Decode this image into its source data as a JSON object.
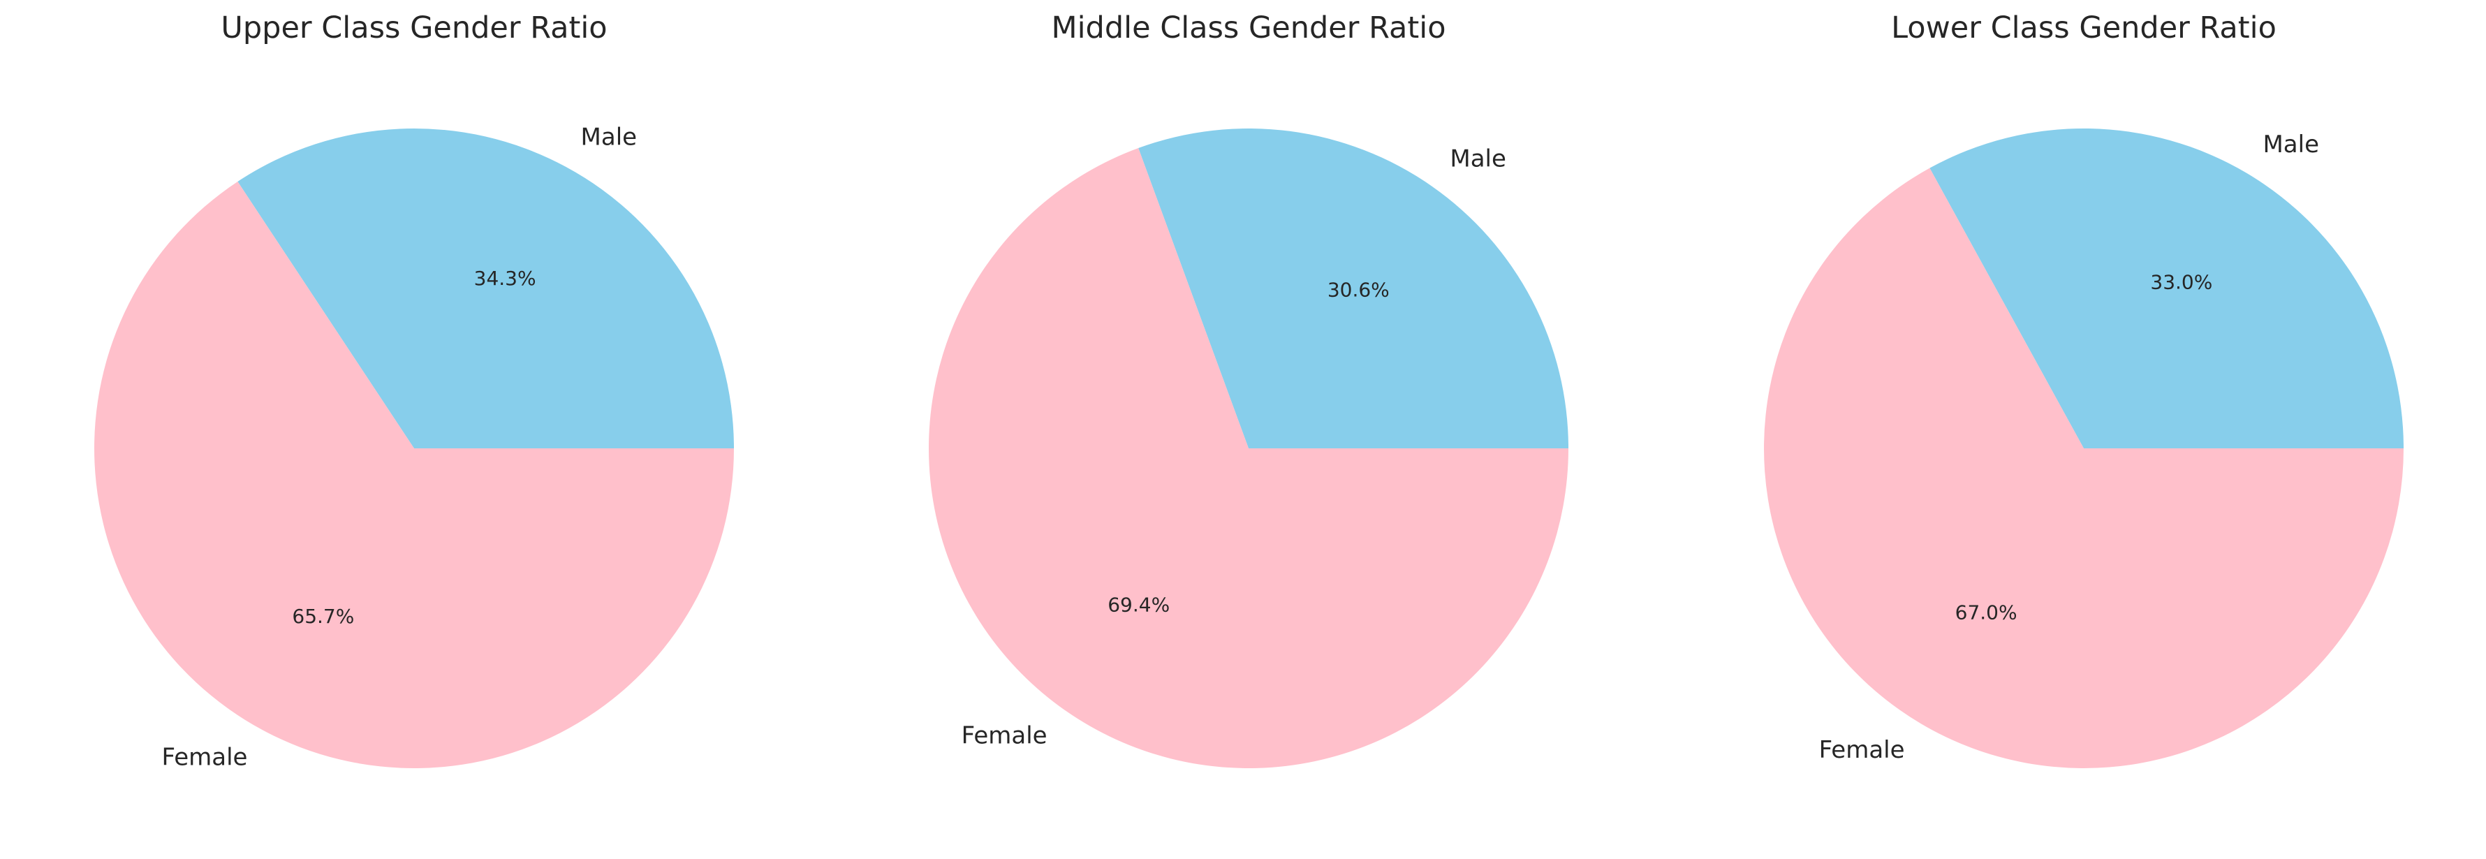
{
  "chart_data": [
    {
      "type": "pie",
      "title": "Upper Class Gender Ratio",
      "categories": [
        "Male",
        "Female"
      ],
      "values": [
        34.3,
        65.7
      ],
      "percent_labels": [
        "34.3%",
        "65.7%"
      ],
      "colors": [
        "#87CEEB",
        "#FFC0CB"
      ],
      "start_angle_deg": 0,
      "direction": "counterclockwise",
      "legend": "none"
    },
    {
      "type": "pie",
      "title": "Middle Class Gender Ratio",
      "categories": [
        "Male",
        "Female"
      ],
      "values": [
        30.6,
        69.4
      ],
      "percent_labels": [
        "30.6%",
        "69.4%"
      ],
      "colors": [
        "#87CEEB",
        "#FFC0CB"
      ],
      "start_angle_deg": 0,
      "direction": "counterclockwise",
      "legend": "none"
    },
    {
      "type": "pie",
      "title": "Lower Class Gender Ratio",
      "categories": [
        "Male",
        "Female"
      ],
      "values": [
        33.0,
        67.0
      ],
      "percent_labels": [
        "33.0%",
        "67.0%"
      ],
      "colors": [
        "#87CEEB",
        "#FFC0CB"
      ],
      "start_angle_deg": 0,
      "direction": "counterclockwise",
      "legend": "none"
    }
  ]
}
